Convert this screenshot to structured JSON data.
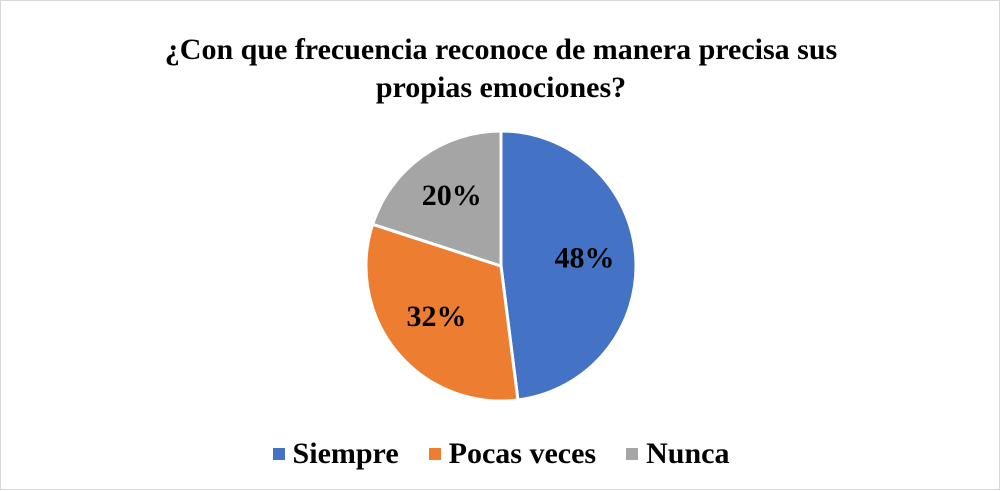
{
  "chart_data": {
    "type": "pie",
    "title": "¿Con que frecuencia reconoce de manera precisa sus propias emociones?",
    "categories": [
      "Siempre",
      "Pocas veces",
      "Nunca"
    ],
    "values": [
      48,
      32,
      20
    ],
    "value_labels": [
      "48%",
      "32%",
      "20%"
    ],
    "colors": [
      "#4472c4",
      "#ed7d31",
      "#a5a5a5"
    ],
    "legend": "bottom"
  }
}
